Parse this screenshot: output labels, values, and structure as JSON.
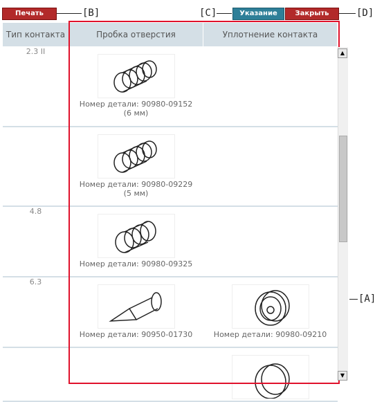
{
  "toolbar": {
    "print_label": "Печать",
    "hint_label": "Указание",
    "close_label": "Закрыть"
  },
  "callouts": {
    "a": "[A]",
    "b": "[B]",
    "c": "[C]",
    "d": "[D]"
  },
  "table": {
    "headers": [
      "Тип контакта",
      "Пробка отверстия",
      "Уплотнение контакта"
    ],
    "rows": [
      {
        "type": "2.3 II",
        "plug": "Номер детали: 90980-09152",
        "plug_note": "(6 мм)",
        "seal": ""
      },
      {
        "type": "",
        "plug": "Номер детали: 90980-09229",
        "plug_note": "(5 мм)",
        "seal": ""
      },
      {
        "type": "4.8",
        "plug": "Номер детали: 90980-09325",
        "plug_note": "",
        "seal": ""
      },
      {
        "type": "6.3",
        "plug": "Номер детали: 90950-01730",
        "plug_note": "",
        "seal": "Номер детали: 90980-09210"
      },
      {
        "type": "",
        "plug": "",
        "plug_note": "",
        "seal": ""
      }
    ]
  },
  "colors": {
    "button_red": "#b22a2a",
    "button_teal": "#2e7f98",
    "highlight_box": "#e0112b",
    "header_bg": "#d4dfe6"
  },
  "icons": {
    "scroll_up": "▲",
    "scroll_down": "▼"
  }
}
